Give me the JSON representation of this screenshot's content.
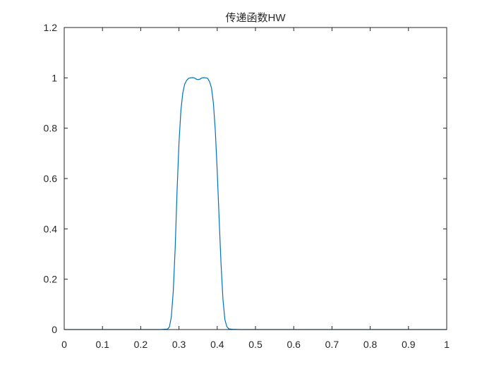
{
  "chart_data": {
    "type": "line",
    "title": "传递函数HW",
    "xlabel": "",
    "ylabel": "",
    "xlim": [
      0,
      1
    ],
    "ylim": [
      0,
      1.2
    ],
    "xticks": [
      0,
      0.1,
      0.2,
      0.3,
      0.4,
      0.5,
      0.6,
      0.7,
      0.8,
      0.9,
      1
    ],
    "xtick_labels": [
      "0",
      "0.1",
      "0.2",
      "0.3",
      "0.4",
      "0.5",
      "0.6",
      "0.7",
      "0.8",
      "0.9",
      "1"
    ],
    "yticks": [
      0,
      0.2,
      0.4,
      0.6,
      0.8,
      1,
      1.2
    ],
    "ytick_labels": [
      "0",
      "0.2",
      "0.4",
      "0.6",
      "0.8",
      "1",
      "1.2"
    ],
    "grid": false,
    "legend": "none",
    "colors": {
      "line": "#0072BD",
      "axes": "#262626",
      "background": "#ffffff"
    },
    "series": [
      {
        "x": [
          0,
          0.25,
          0.27,
          0.275,
          0.28,
          0.285,
          0.29,
          0.295,
          0.3,
          0.305,
          0.31,
          0.315,
          0.32,
          0.325,
          0.33,
          0.335,
          0.34,
          0.345,
          0.35,
          0.355,
          0.36,
          0.365,
          0.37,
          0.375,
          0.38,
          0.385,
          0.39,
          0.395,
          0.4,
          0.405,
          0.41,
          0.415,
          0.42,
          0.425,
          0.43,
          0.435,
          0.44,
          0.46,
          1
        ],
        "y": [
          0,
          0,
          0.002,
          0.01,
          0.05,
          0.15,
          0.32,
          0.55,
          0.74,
          0.87,
          0.94,
          0.975,
          0.99,
          0.998,
          1.0,
          1.001,
          1.0,
          0.995,
          0.993,
          0.995,
          1.0,
          1.001,
          1.0,
          0.998,
          0.985,
          0.96,
          0.9,
          0.79,
          0.63,
          0.44,
          0.26,
          0.12,
          0.04,
          0.012,
          0.003,
          0.002,
          0.001,
          0,
          0
        ]
      }
    ]
  }
}
